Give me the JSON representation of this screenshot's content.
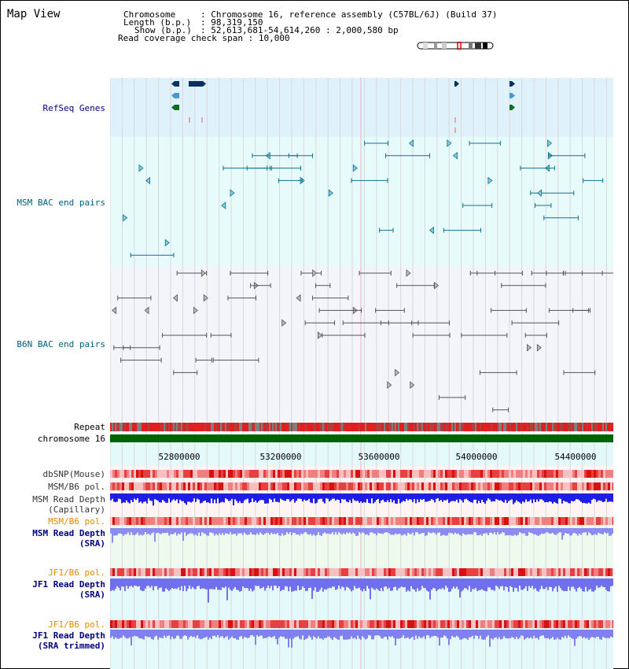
{
  "title": "Map View",
  "header": {
    "chromosome_label": "Chromosome",
    "chromosome_value": "Chromosome 16, reference assembly (C57BL/6J) (Build 37)",
    "length_label": "Length (b.p.)",
    "length_value": "98,319,150",
    "show_label": "Show (b.p.)",
    "show_value": "52,613,681-54,614,260 : 2,000,580 bp",
    "coverage_label": "Read coverage check span",
    "coverage_value": "10,000"
  },
  "tracks": {
    "refseq": "RefSeq Genes",
    "msm_bac": "MSM BAC end pairs",
    "b6n_bac": "B6N BAC end pairs",
    "repeat": "Repeat",
    "chromosome": "chromosome 16",
    "dbsnp": "dbSNP(Mouse)",
    "msm_b6_pol_1": "MSM/B6 pol.",
    "msm_read_depth_cap_1": "MSM Read Depth",
    "msm_read_depth_cap_2": "(Capillary)",
    "msm_b6_pol_2": "MSM/B6 pol.",
    "msm_read_depth_sra_1": "MSM Read Depth",
    "msm_read_depth_sra_2": "(SRA)",
    "jf1_b6_pol_1": "JF1/B6 pol.",
    "jf1_read_depth_1": "JF1 Read Depth",
    "jf1_read_depth_2": "(SRA)",
    "jf1_b6_pol_2": "JF1/B6 pol.",
    "jf1_read_depth_trim_1": "JF1 Read Depth",
    "jf1_read_depth_trim_2": "(SRA trimmed)"
  },
  "ruler": {
    "ticks": [
      "52800000",
      "53200000",
      "53600000",
      "54000000",
      "54400000"
    ]
  },
  "colors": {
    "refseq_bg": "#dff2fb",
    "msm_bg": "#e8fbfb",
    "b6n_bg": "#f4f4fb",
    "label_navy": "#000080",
    "label_teal": "#006080",
    "label_orange": "#e08a00",
    "chrom_green": "#006400",
    "depth_blue": "#1e1ee6",
    "depth_light": "#8080f0",
    "pol_red": "#e83030",
    "pink": "#f0a0a0"
  }
}
